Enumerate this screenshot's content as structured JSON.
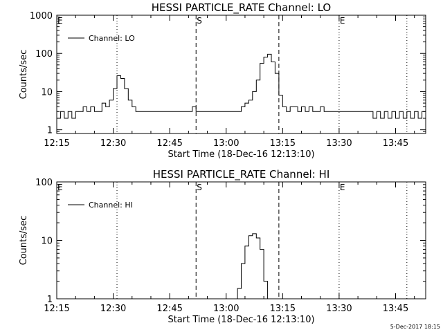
{
  "chart_data": [
    {
      "type": "line",
      "title": "HESSI PARTICLE_RATE Channel: LO",
      "xlabel": "Start Time (18-Dec-16 12:13:10)",
      "ylabel": "Counts/sec",
      "yscale": "log",
      "xlim": [
        "12:15",
        "13:53"
      ],
      "ylim": [
        0.8,
        1000
      ],
      "x_tick_labels": [
        "12:15",
        "12:30",
        "12:45",
        "13:00",
        "13:15",
        "13:30",
        "13:45"
      ],
      "y_tick_labels": [
        "1",
        "10",
        "100",
        "1000"
      ],
      "legend": {
        "position": "top-left",
        "entries": [
          "Channel: LO"
        ]
      },
      "series": [
        {
          "name": "Channel: LO",
          "x": [
            "12:15",
            "12:16",
            "12:17",
            "12:18",
            "12:19",
            "12:20",
            "12:21",
            "12:22",
            "12:23",
            "12:24",
            "12:25",
            "12:26",
            "12:27",
            "12:28",
            "12:29",
            "12:30",
            "12:31",
            "12:32",
            "12:33",
            "12:34",
            "12:35",
            "12:36",
            "12:37",
            "12:38",
            "12:39",
            "12:40",
            "12:41",
            "12:42",
            "12:43",
            "12:44",
            "12:45",
            "12:46",
            "12:47",
            "12:48",
            "12:49",
            "12:50",
            "12:51",
            "12:52",
            "12:53",
            "12:54",
            "12:55",
            "12:56",
            "12:57",
            "12:58",
            "12:59",
            "13:00",
            "13:01",
            "13:02",
            "13:03",
            "13:04",
            "13:05",
            "13:06",
            "13:07",
            "13:08",
            "13:09",
            "13:10",
            "13:11",
            "13:12",
            "13:13",
            "13:14",
            "13:15",
            "13:16",
            "13:17",
            "13:18",
            "13:19",
            "13:20",
            "13:21",
            "13:22",
            "13:23",
            "13:24",
            "13:25",
            "13:26",
            "13:27",
            "13:28",
            "13:29",
            "13:30",
            "13:31",
            "13:32",
            "13:33",
            "13:34",
            "13:35",
            "13:36",
            "13:37",
            "13:38",
            "13:39",
            "13:40",
            "13:41",
            "13:42",
            "13:43",
            "13:44",
            "13:45",
            "13:46",
            "13:47",
            "13:48",
            "13:49",
            "13:50",
            "13:51",
            "13:52",
            "13:53"
          ],
          "values": [
            2,
            3,
            2,
            3,
            2,
            3,
            3,
            4,
            3,
            4,
            3,
            3,
            5,
            4,
            6,
            12,
            26,
            22,
            12,
            6,
            4,
            3,
            3,
            3,
            3,
            3,
            3,
            3,
            3,
            3,
            3,
            3,
            3,
            3,
            3,
            3,
            4,
            3,
            3,
            3,
            3,
            3,
            3,
            3,
            3,
            3,
            3,
            3,
            3,
            4,
            5,
            6,
            10,
            20,
            55,
            80,
            95,
            60,
            30,
            8,
            4,
            3,
            4,
            4,
            3,
            4,
            3,
            4,
            3,
            3,
            4,
            3,
            3,
            3,
            3,
            3,
            3,
            3,
            3,
            3,
            3,
            3,
            3,
            3,
            2,
            3,
            2,
            3,
            2,
            3,
            2,
            3,
            2,
            3,
            2,
            3,
            2,
            3,
            1
          ]
        }
      ],
      "vlines": [
        {
          "time": "12:31",
          "style": "dotted",
          "label": ""
        },
        {
          "time": "12:52",
          "style": "dashed",
          "label": "S"
        },
        {
          "time": "13:14",
          "style": "dashed",
          "label": ""
        },
        {
          "time": "13:30",
          "style": "dotted",
          "label": "E"
        },
        {
          "time": "13:48",
          "style": "dotted",
          "label": ""
        }
      ],
      "edge_label": "E"
    },
    {
      "type": "line",
      "title": "HESSI PARTICLE_RATE Channel: HI",
      "xlabel": "Start Time (18-Dec-16 12:13:10)",
      "ylabel": "Counts/sec",
      "yscale": "log",
      "xlim": [
        "12:15",
        "13:53"
      ],
      "ylim": [
        1,
        100
      ],
      "x_tick_labels": [
        "12:15",
        "12:30",
        "12:45",
        "13:00",
        "13:15",
        "13:30",
        "13:45"
      ],
      "y_tick_labels": [
        "1",
        "10",
        "100"
      ],
      "legend": {
        "position": "top-left",
        "entries": [
          "Channel: HI"
        ]
      },
      "series": [
        {
          "name": "Channel: HI",
          "x": [
            "13:02",
            "13:03",
            "13:04",
            "13:05",
            "13:06",
            "13:07",
            "13:08",
            "13:09",
            "13:10",
            "13:11"
          ],
          "values": [
            0.9,
            1.5,
            4,
            8,
            12,
            13,
            11,
            7,
            2,
            0.9
          ]
        }
      ],
      "vlines": [
        {
          "time": "12:31",
          "style": "dotted",
          "label": ""
        },
        {
          "time": "12:52",
          "style": "dashed",
          "label": "S"
        },
        {
          "time": "13:14",
          "style": "dashed",
          "label": ""
        },
        {
          "time": "13:30",
          "style": "dotted",
          "label": "E"
        },
        {
          "time": "13:48",
          "style": "dotted",
          "label": ""
        }
      ],
      "edge_label": "E"
    }
  ],
  "footer": {
    "timestamp": "5-Dec-2017 18:15"
  }
}
